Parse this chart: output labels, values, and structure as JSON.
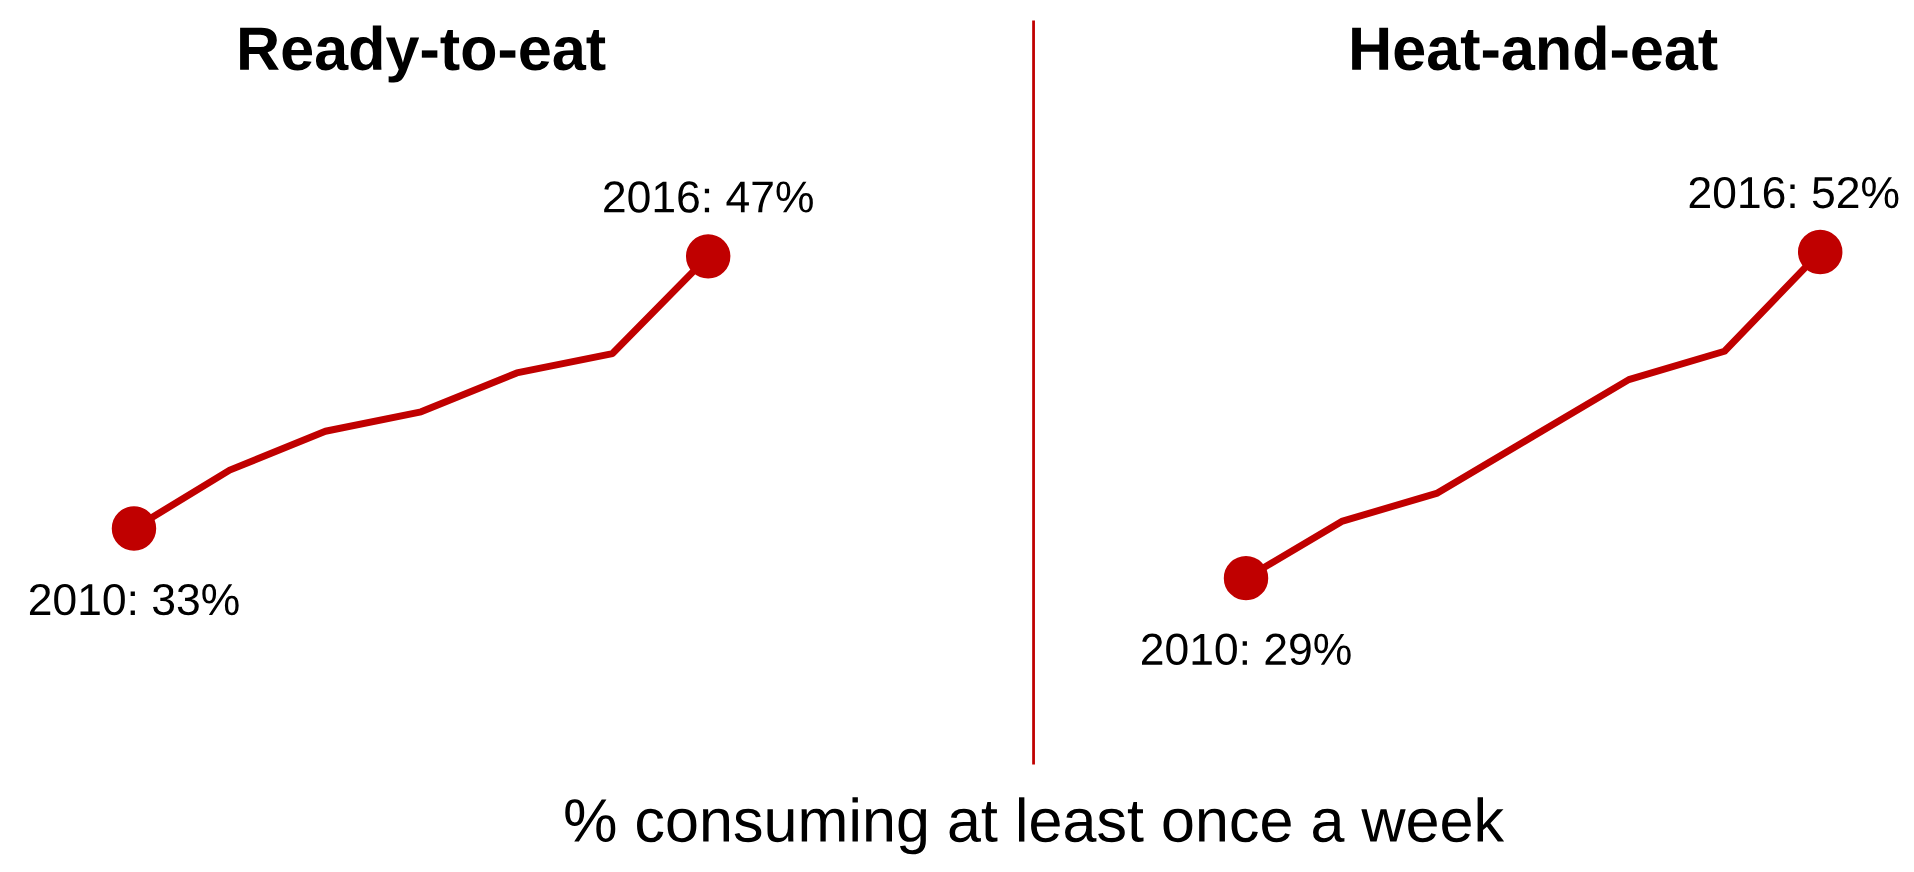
{
  "chart_data": [
    {
      "type": "line",
      "title": "Ready-to-eat",
      "categories": [
        null,
        null,
        null,
        null,
        null,
        null,
        null
      ],
      "series": [
        {
          "color": "#c00000",
          "values": [
            33,
            36,
            38,
            39,
            41,
            42,
            47
          ],
          "value_labels": [
            "2010: 33%",
            null,
            null,
            null,
            null,
            null,
            "2016: 47%"
          ]
        }
      ]
    },
    {
      "type": "line",
      "title": "Heat-and-eat",
      "categories": [
        null,
        null,
        null,
        null,
        null,
        null,
        null
      ],
      "series": [
        {
          "color": "#c00000",
          "values": [
            29,
            33,
            35,
            39,
            43,
            45,
            52
          ],
          "value_labels": [
            "2010: 29%",
            null,
            null,
            null,
            null,
            null,
            "2016: 52%"
          ]
        }
      ],
      "annotations": [
        "% consuming at least once a week"
      ]
    }
  ]
}
